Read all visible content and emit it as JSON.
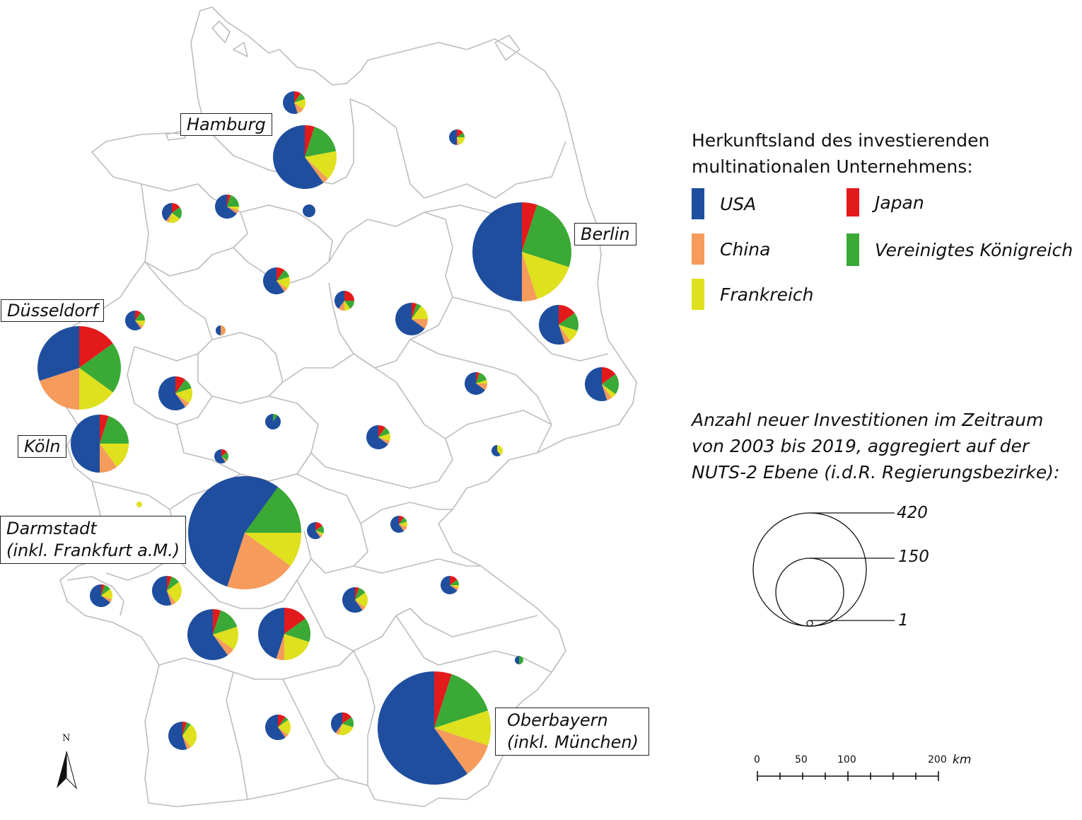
{
  "legend": {
    "title_line1": "Herkunftsland des investierenden",
    "title_line2": "multinationalen Unternehmens:",
    "items": [
      {
        "label": "USA",
        "color": "#1f4e9e"
      },
      {
        "label": "Japan",
        "color": "#e31a1c"
      },
      {
        "label": "China",
        "color": "#f59b5c"
      },
      {
        "label": "Vereinigtes Königreich",
        "color": "#3aa935"
      },
      {
        "label": "Frankreich",
        "color": "#dfe01e"
      }
    ]
  },
  "size_legend": {
    "line1": "Anzahl neuer Investitionen im Zeitraum",
    "line2": "von 2003 bis 2019, aggregiert auf der",
    "line3": "NUTS-2 Ebene (i.d.R. Regierungsbezirke):",
    "values": [
      "420",
      "150",
      "1"
    ]
  },
  "scale_bar": {
    "ticks": [
      "0",
      "50",
      "100",
      "200"
    ],
    "unit": "km"
  },
  "north_arrow": {
    "label": "N"
  },
  "city_labels": [
    "Hamburg",
    "Berlin",
    "Düsseldorf",
    "Köln",
    "Darmstadt",
    "(inkl. Frankfurt a.M.)",
    "Oberbayern",
    "(inkl. München)"
  ]
}
